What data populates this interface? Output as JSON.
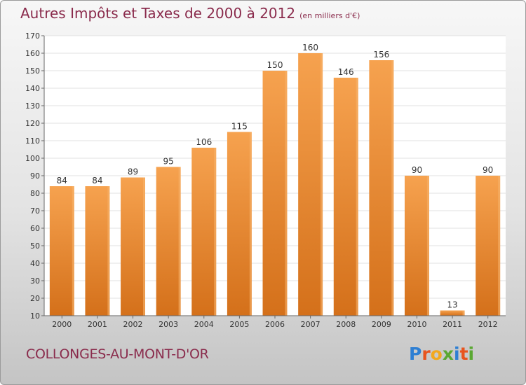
{
  "title": "Autres Impôts et Taxes de 2000 à 2012",
  "unit_label": "(en milliers d'€)",
  "commune": "COLLONGES-AU-MONT-D'OR",
  "logo": {
    "text": "Proxiti",
    "letters": [
      {
        "ch": "P",
        "color": "#2e7fd3"
      },
      {
        "ch": "r",
        "color": "#e8541e"
      },
      {
        "ch": "o",
        "color": "#f2a81d"
      },
      {
        "ch": "x",
        "color": "#5aa832"
      },
      {
        "ch": "i",
        "color": "#2e7fd3"
      },
      {
        "ch": "t",
        "color": "#e8541e"
      },
      {
        "ch": "i",
        "color": "#5aa832"
      }
    ]
  },
  "chart_data": {
    "type": "bar",
    "title": "Autres Impôts et Taxes de 2000 à 2012",
    "categories": [
      "2000",
      "2001",
      "2002",
      "2003",
      "2004",
      "2005",
      "2006",
      "2007",
      "2008",
      "2009",
      "2010",
      "2011",
      "2012"
    ],
    "values": [
      84,
      84,
      89,
      95,
      106,
      115,
      150,
      160,
      146,
      156,
      90,
      13,
      90
    ],
    "ylim": [
      10,
      170
    ],
    "yticks": [
      10,
      20,
      30,
      40,
      50,
      60,
      70,
      80,
      90,
      100,
      110,
      120,
      130,
      140,
      150,
      160,
      170
    ],
    "grid": true,
    "bar_color": "#e8872e"
  }
}
